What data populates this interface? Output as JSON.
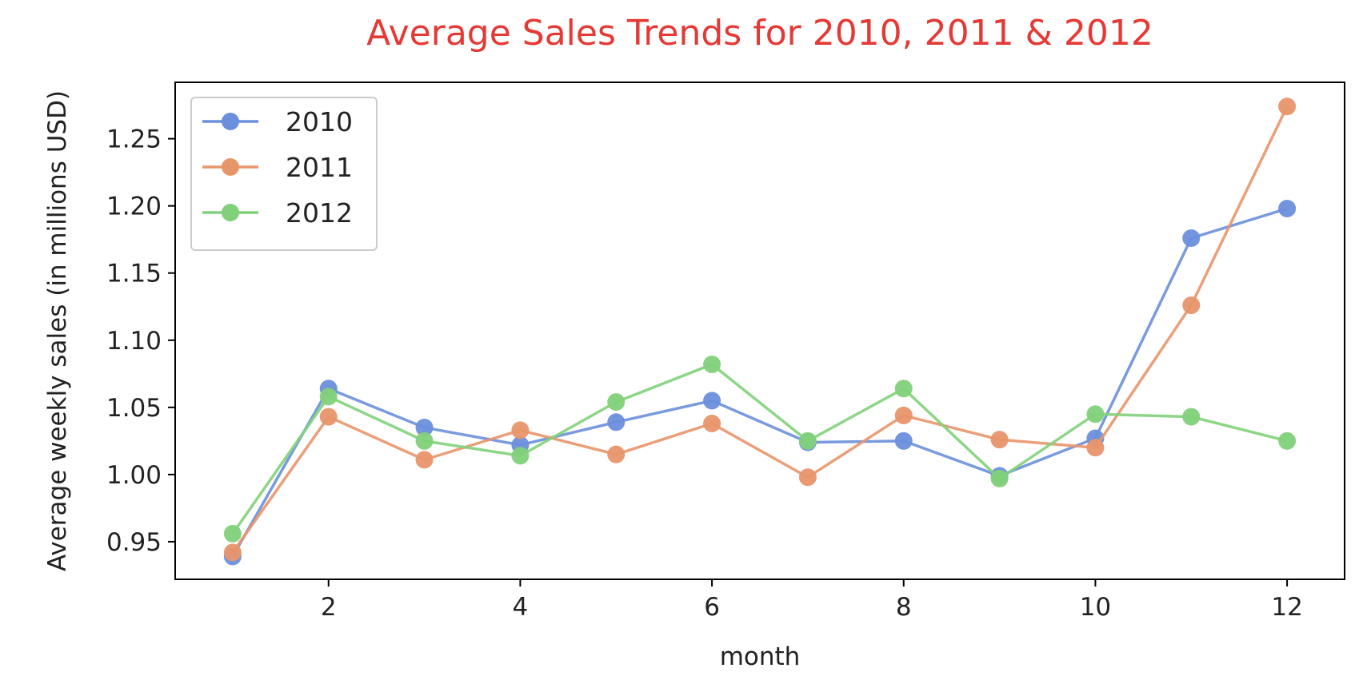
{
  "chart_data": {
    "type": "line",
    "title": "Average Sales Trends for 2010, 2011 & 2012",
    "xlabel": "month",
    "ylabel": "Average weekly sales (in millions USD)",
    "xlim": [
      0.4,
      12.6
    ],
    "ylim": [
      0.922,
      1.292
    ],
    "xticks": [
      2,
      4,
      6,
      8,
      10,
      12
    ],
    "xtick_labels": [
      "2",
      "4",
      "6",
      "8",
      "10",
      "12"
    ],
    "yticks": [
      0.95,
      1.0,
      1.05,
      1.1,
      1.15,
      1.2,
      1.25
    ],
    "ytick_labels": [
      "0.95",
      "1.00",
      "1.05",
      "1.10",
      "1.15",
      "1.20",
      "1.25"
    ],
    "grid": false,
    "legend": "top-left",
    "x": [
      1,
      2,
      3,
      4,
      5,
      6,
      7,
      8,
      9,
      10,
      11,
      12
    ],
    "series": [
      {
        "name": "2010",
        "color": "#6a8fdc",
        "values": [
          0.939,
          1.064,
          1.035,
          1.022,
          1.039,
          1.055,
          1.024,
          1.025,
          0.999,
          1.027,
          1.176,
          1.198
        ]
      },
      {
        "name": "2011",
        "color": "#e8956a",
        "values": [
          0.942,
          1.043,
          1.011,
          1.033,
          1.015,
          1.038,
          0.998,
          1.044,
          1.026,
          1.02,
          1.126,
          1.274
        ]
      },
      {
        "name": "2012",
        "color": "#82d17a",
        "values": [
          0.956,
          1.058,
          1.025,
          1.014,
          1.054,
          1.082,
          1.025,
          1.064,
          0.997,
          1.045,
          1.043,
          1.025
        ],
        "x": [
          1,
          2,
          3,
          4,
          5,
          6,
          7,
          8,
          9,
          10,
          11,
          12
        ]
      }
    ]
  }
}
